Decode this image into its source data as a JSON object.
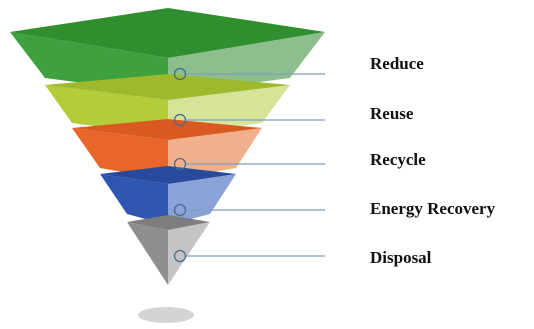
{
  "levels": [
    {
      "label": "Reduce",
      "color": "#3f9b3f"
    },
    {
      "label": "Reuse",
      "color": "#a8c63c"
    },
    {
      "label": "Recycle",
      "color": "#e8743c"
    },
    {
      "label": "Energy Recovery",
      "color": "#3f63b8"
    },
    {
      "label": "Disposal",
      "color": "#9a9a9a"
    }
  ]
}
